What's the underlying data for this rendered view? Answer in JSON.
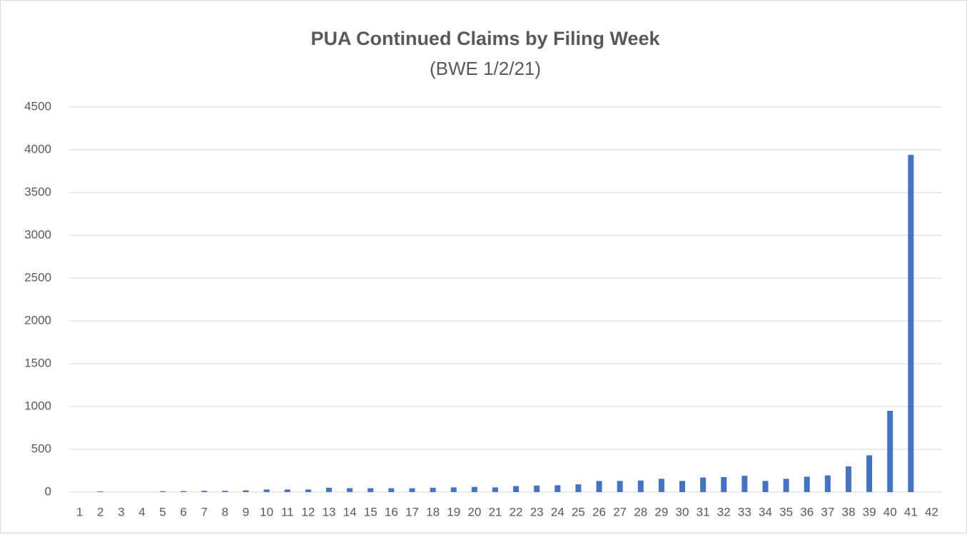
{
  "chart_data": {
    "type": "bar",
    "title": "PUA Continued Claims by Filing Week",
    "subtitle": "(BWE 1/2/21)",
    "categories": [
      "1",
      "2",
      "3",
      "4",
      "5",
      "6",
      "7",
      "8",
      "9",
      "10",
      "11",
      "12",
      "13",
      "14",
      "15",
      "16",
      "17",
      "18",
      "19",
      "20",
      "21",
      "22",
      "23",
      "24",
      "25",
      "26",
      "27",
      "28",
      "29",
      "30",
      "31",
      "32",
      "33",
      "34",
      "35",
      "36",
      "37",
      "38",
      "39",
      "40",
      "41",
      "42"
    ],
    "values": [
      0,
      8,
      0,
      0,
      10,
      12,
      15,
      15,
      20,
      30,
      30,
      30,
      50,
      45,
      45,
      45,
      45,
      50,
      55,
      60,
      55,
      70,
      75,
      80,
      90,
      130,
      130,
      135,
      155,
      130,
      170,
      175,
      190,
      130,
      155,
      180,
      195,
      300,
      430,
      950,
      3940,
      0
    ],
    "color": "#4472c4",
    "ylim": [
      0,
      4500
    ],
    "yticks": [
      0,
      500,
      1000,
      1500,
      2000,
      2500,
      3000,
      3500,
      4000,
      4500
    ],
    "grid": true
  }
}
